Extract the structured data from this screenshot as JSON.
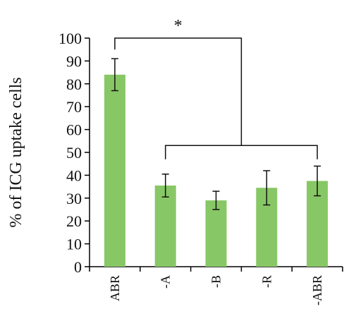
{
  "chart_data": {
    "type": "bar",
    "title": "",
    "xlabel": "",
    "ylabel": "% of ICG uptake cells",
    "ylim": [
      0,
      100
    ],
    "y_ticks": [
      "0",
      "10",
      "20",
      "30",
      "40",
      "50",
      "60",
      "70",
      "80",
      "90",
      "100"
    ],
    "categories": [
      "ABR",
      "-A",
      "-B",
      "-R",
      "-ABR"
    ],
    "values": [
      84,
      35.5,
      29,
      34.5,
      37.5
    ],
    "errors": [
      7,
      5,
      4,
      7.5,
      6.5
    ],
    "bar_color": "#88c765",
    "grid": false,
    "legend": "none",
    "annotation": {
      "text": "*",
      "compares": "ABR vs -A, -B, -R, -ABR"
    }
  }
}
